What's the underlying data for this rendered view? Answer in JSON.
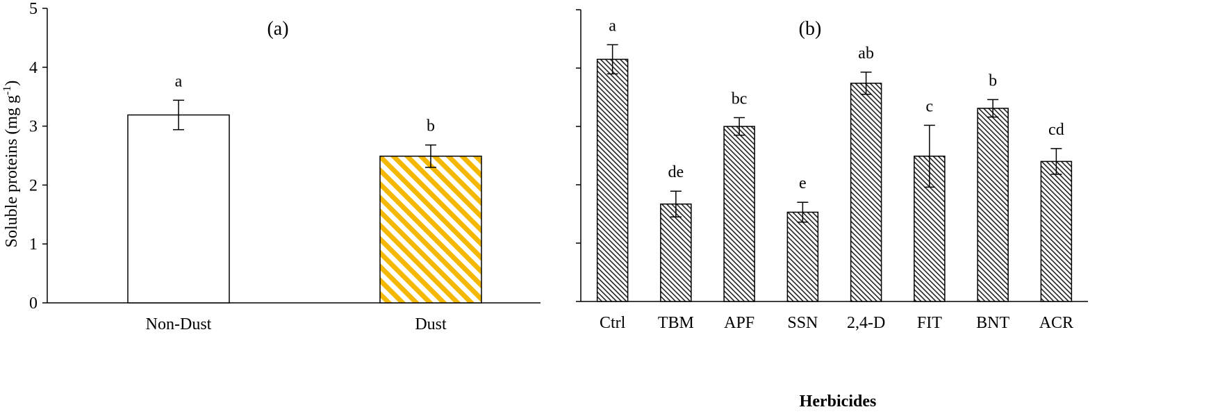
{
  "chart_data": [
    {
      "type": "bar",
      "panel_label": "(a)",
      "ylabel": "Soluble proteins (mg g",
      "ylabel_sup": "-1",
      "ylabel_close": ")",
      "ylim": [
        0,
        5
      ],
      "yticks": [
        "0",
        "1",
        "2",
        "3",
        "4",
        "5"
      ],
      "categories": [
        "Non-Dust",
        "Dust"
      ],
      "values": [
        3.19,
        2.49
      ],
      "errors": [
        0.25,
        0.19
      ],
      "letters": [
        "a",
        "b"
      ],
      "fills": [
        "white",
        "yellow-hatch"
      ],
      "hatch_color": "#f5b800"
    },
    {
      "type": "bar",
      "panel_label": "(b)",
      "xlabel": "Herbicides",
      "ylim": [
        0,
        5
      ],
      "categories": [
        "Ctrl",
        "TBM",
        "APF",
        "SSN",
        "2,4-D",
        "FIT",
        "BNT",
        "ACR"
      ],
      "values": [
        4.15,
        1.67,
        3.0,
        1.53,
        3.74,
        2.49,
        3.31,
        2.4
      ],
      "errors": [
        0.25,
        0.22,
        0.15,
        0.17,
        0.19,
        0.53,
        0.15,
        0.22
      ],
      "letters": [
        "a",
        "de",
        "bc",
        "e",
        "ab",
        "c",
        "b",
        "cd"
      ],
      "fills": "black-hatch"
    }
  ]
}
